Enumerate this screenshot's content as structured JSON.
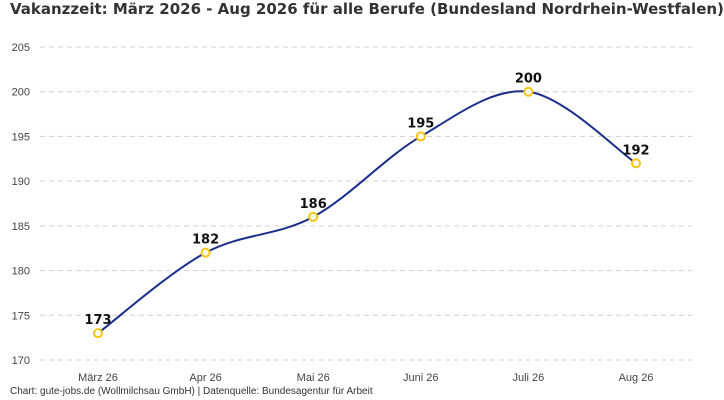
{
  "chart_data": {
    "type": "line",
    "title": "Vakanzzeit: März 2026 - Aug 2026 für alle Berufe (Bundesland Nordrhein-Westfalen)",
    "categories": [
      "März 26",
      "Apr 26",
      "Mai 26",
      "Juni 26",
      "Juli 26",
      "Aug 26"
    ],
    "series": [
      {
        "values": [
          173,
          182,
          186,
          195,
          200,
          192
        ]
      }
    ],
    "data_labels": [
      "173",
      "182",
      "186",
      "195",
      "200",
      "192"
    ],
    "yticks": [
      170,
      175,
      180,
      185,
      190,
      195,
      200,
      205
    ],
    "ylim": [
      170,
      205
    ],
    "grid": true,
    "line_color": "#1a2f8c",
    "marker_color": "#f5c518",
    "source": "Chart: gute-jobs.de (Wollmilchsau GmbH) | Datenquelle: Bundesagentur für Arbeit"
  }
}
